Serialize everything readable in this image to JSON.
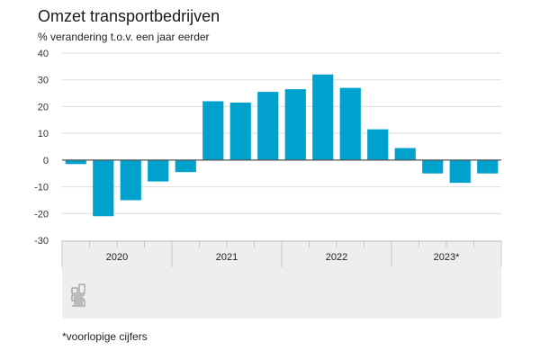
{
  "chart_data": {
    "type": "bar",
    "title": "Omzet transportbedrijven",
    "subtitle": "% verandering t.o.v. een jaar eerder",
    "xlabel": "",
    "ylabel": "% verandering t.o.v. een jaar eerder",
    "ylim": [
      -30,
      40
    ],
    "yticks": [
      40,
      30,
      20,
      10,
      0,
      -10,
      -20,
      -30
    ],
    "grid": true,
    "legend": "none",
    "bar_color": "#00a1cd",
    "categories": [
      "2020 K1",
      "2020 K2",
      "2020 K3",
      "2020 K4",
      "2021 K1",
      "2021 K2",
      "2021 K3",
      "2021 K4",
      "2022 K1",
      "2022 K2",
      "2022 K3",
      "2022 K4",
      "2023 K1",
      "2023 K2",
      "2023 K3",
      "2023 K4"
    ],
    "values": [
      -1.5,
      -21,
      -15,
      -8,
      -4.5,
      22,
      21.5,
      25.5,
      26.5,
      32,
      27,
      11.5,
      4.5,
      -5,
      -8.5,
      -5
    ],
    "year_groups": [
      {
        "label": "2020",
        "quarters": 4
      },
      {
        "label": "2021",
        "quarters": 4
      },
      {
        "label": "2022",
        "quarters": 4
      },
      {
        "label": "2023*",
        "quarters": 4
      }
    ],
    "footnote": "*voorlopige cijfers",
    "logo": "cbs-logo-icon"
  }
}
